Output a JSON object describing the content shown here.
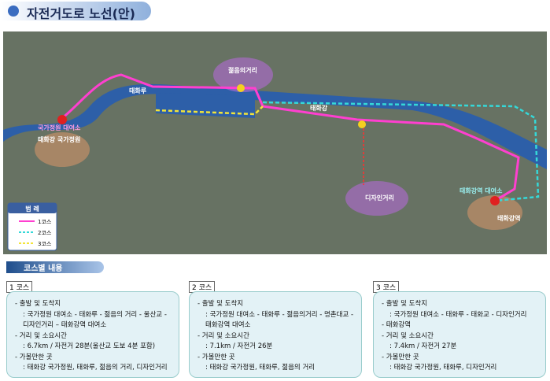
{
  "title": "자전거도로 노선(안)",
  "map": {
    "labels": [
      "젊음의거리",
      "국가정원 대여소",
      "태화강 국가정원",
      "태화루",
      "태화강",
      "디자인거리",
      "태화강역 대여소",
      "태화강역"
    ]
  },
  "legend": {
    "title": "범 례",
    "items": [
      "1코스",
      "2코스",
      "3코스"
    ]
  },
  "section_title": "코스별 내용",
  "courses": [
    {
      "tab": "1 코스",
      "lines": [
        "- 출발 및 도착지",
        ": 국가정원 대여소 - 태화루 - 젊음의 거리 - 울산교 -",
        "디자인거리 – 태화강역 대여소",
        "- 거리 및 소요시간",
        ": 6.7km / 자전거 28분(울산교 도보 4분 포함)",
        "- 가볼만한 곳",
        ": 태화강 국가정원, 태화루, 젊음의 거리, 디자인거리"
      ]
    },
    {
      "tab": "2 코스",
      "lines": [
        "- 출발 및 도착지",
        ": 국가정원 대여소 - 태화루 - 젊음의거리 - 명촌대교 -",
        "태화강역 대여소",
        "- 거리 및 소요시간",
        ": 7.1km / 자전거 26분",
        "- 가볼만한 곳",
        ": 태화강 국가정원, 태화루, 젊음의 거리"
      ]
    },
    {
      "tab": "3 코스",
      "lines": [
        "- 출발 및 도착지",
        ": 국가정원 대여소 - 태화루 - 태화교 - 디자인거리",
        "- 태화강역",
        "- 거리 및 소요시간",
        ": 7.4km / 자전거 27분",
        "- 가볼만한 곳",
        ": 태화강 국가정원, 태화루, 디자인거리"
      ]
    }
  ]
}
